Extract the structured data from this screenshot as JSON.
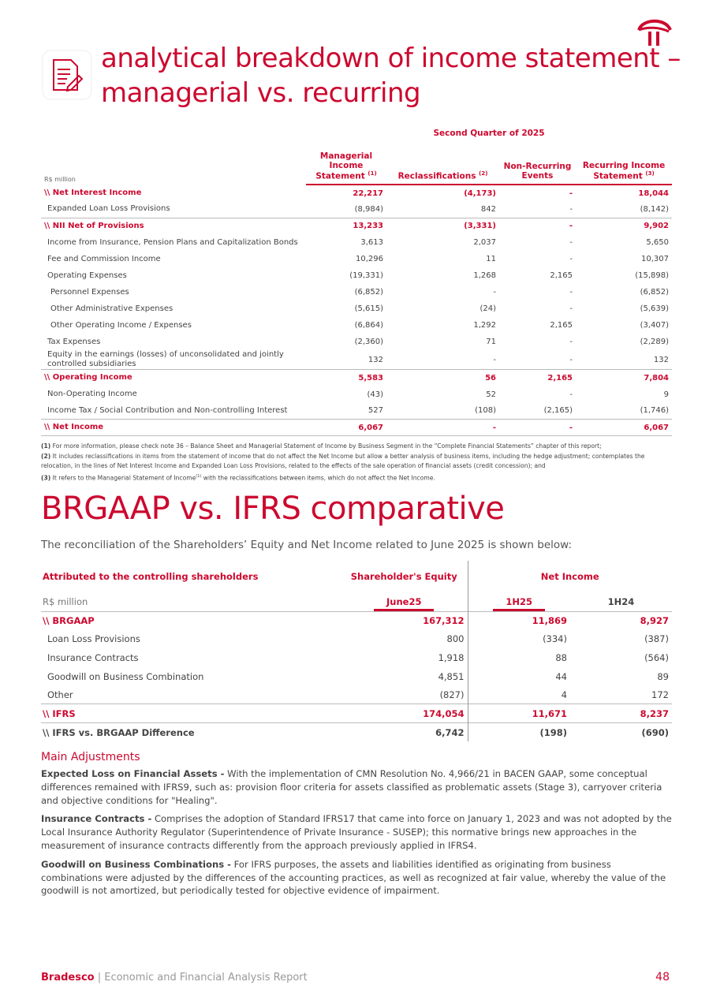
{
  "header": {
    "title": [
      "analytical breakdown of income statement –",
      "managerial vs. recurring"
    ]
  },
  "table1": {
    "group_header": "Second Quarter of 2025",
    "unit": "R$ million",
    "columns": [
      {
        "text": "Managerial Income Statement",
        "note": "(1)"
      },
      {
        "text": "Reclassifications",
        "note": "(2)"
      },
      {
        "text": "Non-Recurring Events"
      },
      {
        "text": "Recurring Income Statement",
        "note": "(3)"
      }
    ],
    "rows": [
      {
        "label": "\\\\ Net Interest Income",
        "values": [
          "22,217",
          "(4,173)",
          "-",
          "18,044"
        ],
        "bold": true,
        "indent": 0
      },
      {
        "label": "Expanded Loan Loss Provisions",
        "values": [
          "(8,984)",
          "842",
          "-",
          "(8,142)"
        ],
        "indent": 1
      },
      {
        "label": "\\\\ NII Net of Provisions",
        "values": [
          "13,233",
          "(3,331)",
          "-",
          "9,902"
        ],
        "bold": true,
        "indent": 0
      },
      {
        "label": "Income from Insurance, Pension Plans and Capitalization Bonds",
        "values": [
          "3,613",
          "2,037",
          "-",
          "5,650"
        ],
        "indent": 1
      },
      {
        "label": "Fee and Commission Income",
        "values": [
          "10,296",
          "11",
          "-",
          "10,307"
        ],
        "indent": 1
      },
      {
        "label": "Operating Expenses",
        "values": [
          "(19,331)",
          "1,268",
          "2,165",
          "(15,898)"
        ],
        "indent": 1
      },
      {
        "label": "Personnel Expenses",
        "values": [
          "(6,852)",
          "-",
          "-",
          "(6,852)"
        ],
        "indent": 2
      },
      {
        "label": "Other Administrative Expenses",
        "values": [
          "(5,615)",
          "(24)",
          "-",
          "(5,639)"
        ],
        "indent": 2
      },
      {
        "label": "Other Operating Income / Expenses",
        "values": [
          "(6,864)",
          "1,292",
          "2,165",
          "(3,407)"
        ],
        "indent": 2
      },
      {
        "label": "Tax Expenses",
        "values": [
          "(2,360)",
          "71",
          "-",
          "(2,289)"
        ],
        "indent": 1
      },
      {
        "label": "Equity in the earnings (losses) of unconsolidated and jointly controlled subsidiaries",
        "values": [
          "132",
          "-",
          "-",
          "132"
        ],
        "indent": 1
      },
      {
        "label": "\\\\ Operating Income",
        "values": [
          "5,583",
          "56",
          "2,165",
          "7,804"
        ],
        "bold": true,
        "indent": 0
      },
      {
        "label": "Non-Operating Income",
        "values": [
          "(43)",
          "52",
          "-",
          "9"
        ],
        "indent": 1
      },
      {
        "label": "Income Tax / Social Contribution and Non-controlling Interest",
        "values": [
          "527",
          "(108)",
          "(2,165)",
          "(1,746)"
        ],
        "indent": 1
      },
      {
        "label": "\\\\ Net Income",
        "values": [
          "6,067",
          "-",
          "-",
          "6,067"
        ],
        "bold": true,
        "indent": 0
      }
    ],
    "footnotes": [
      {
        "mark": "(1)",
        "text": " For more information, please check note 36 – Balance Sheet and Managerial Statement of Income by Business Segment in the “Complete Financial Statements” chapter of this report;"
      },
      {
        "mark": "(2)",
        "text": " It includes reclassifications in items from the statement of income that do not affect the Net Income but allow a better analysis of business items, including the hedge adjustment; contemplates the relocation, in the lines of Net Interest Income and Expanded Loan Loss Provisions, related to the effects of the sale operation of financial assets (credit concession); and"
      },
      {
        "mark": "(3)",
        "text": " It refers to the Managerial Statement of Income",
        "sup": "(1)",
        "text_after": " with the reclassifications between items, which do not affect the Net Income."
      }
    ]
  },
  "section2": {
    "title": "BRGAAP vs. IFRS comparative",
    "intro": "The reconciliation of the Shareholders’ Equity and Net Income related to June 2025 is shown below:"
  },
  "table2": {
    "label_header": "Attributed to the controlling shareholders",
    "equity_header": "Shareholder's Equity",
    "income_header": "Net Income",
    "unit": "R$ million",
    "periods": [
      "June25",
      "1H25",
      "1H24"
    ],
    "rows": [
      {
        "label": "\\\\ BRGAAP",
        "values": [
          "167,312",
          "11,869",
          "8,927"
        ],
        "bold": true,
        "highlight": true
      },
      {
        "label": "Loan Loss Provisions",
        "values": [
          "800",
          "(334)",
          "(387)"
        ]
      },
      {
        "label": "Insurance Contracts",
        "values": [
          "1,918",
          "88",
          "(564)"
        ]
      },
      {
        "label": "Goodwill on Business Combination",
        "values": [
          "4,851",
          "44",
          "89"
        ]
      },
      {
        "label": "Other",
        "values": [
          "(827)",
          "4",
          "172"
        ]
      },
      {
        "label": "\\\\ IFRS",
        "values": [
          "174,054",
          "11,671",
          "8,237"
        ],
        "bold": true,
        "highlight": true
      },
      {
        "label": "\\\\ IFRS vs. BRGAAP Difference",
        "values": [
          "6,742",
          "(198)",
          "(690)"
        ],
        "bold": true,
        "highlight": false
      }
    ]
  },
  "adjustments": {
    "heading": "Main Adjustments",
    "items": [
      {
        "lead": "Expected Loss on Financial Assets -",
        "text": " With the implementation of CMN Resolution No. 4,966/21 in BACEN GAAP, some conceptual differences remained with IFRS9, such as: provision floor criteria for assets classified as problematic assets (Stage 3), carryover criteria and objective conditions for \"Healing\"."
      },
      {
        "lead": "Insurance Contracts -",
        "text": " Comprises the adoption of Standard IFRS17 that came into force on January 1, 2023 and was not adopted by the Local Insurance Authority Regulator (Superintendence of Private Insurance - SUSEP); this normative brings new approaches in the measurement of insurance contracts differently from the approach previously applied in IFRS4."
      },
      {
        "lead": "Goodwill on Business Combinations -",
        "text": " For IFRS purposes, the assets and liabilities identified as originating from business combinations were adjusted by the differences of the accounting practices, as well as recognized at fair value, whereby the value of the goodwill is not amortized, but periodically tested for objective evidence of impairment."
      }
    ]
  },
  "footer": {
    "brand": "Bradesco",
    "report": " | Economic and Financial Analysis Report",
    "page": "48"
  }
}
